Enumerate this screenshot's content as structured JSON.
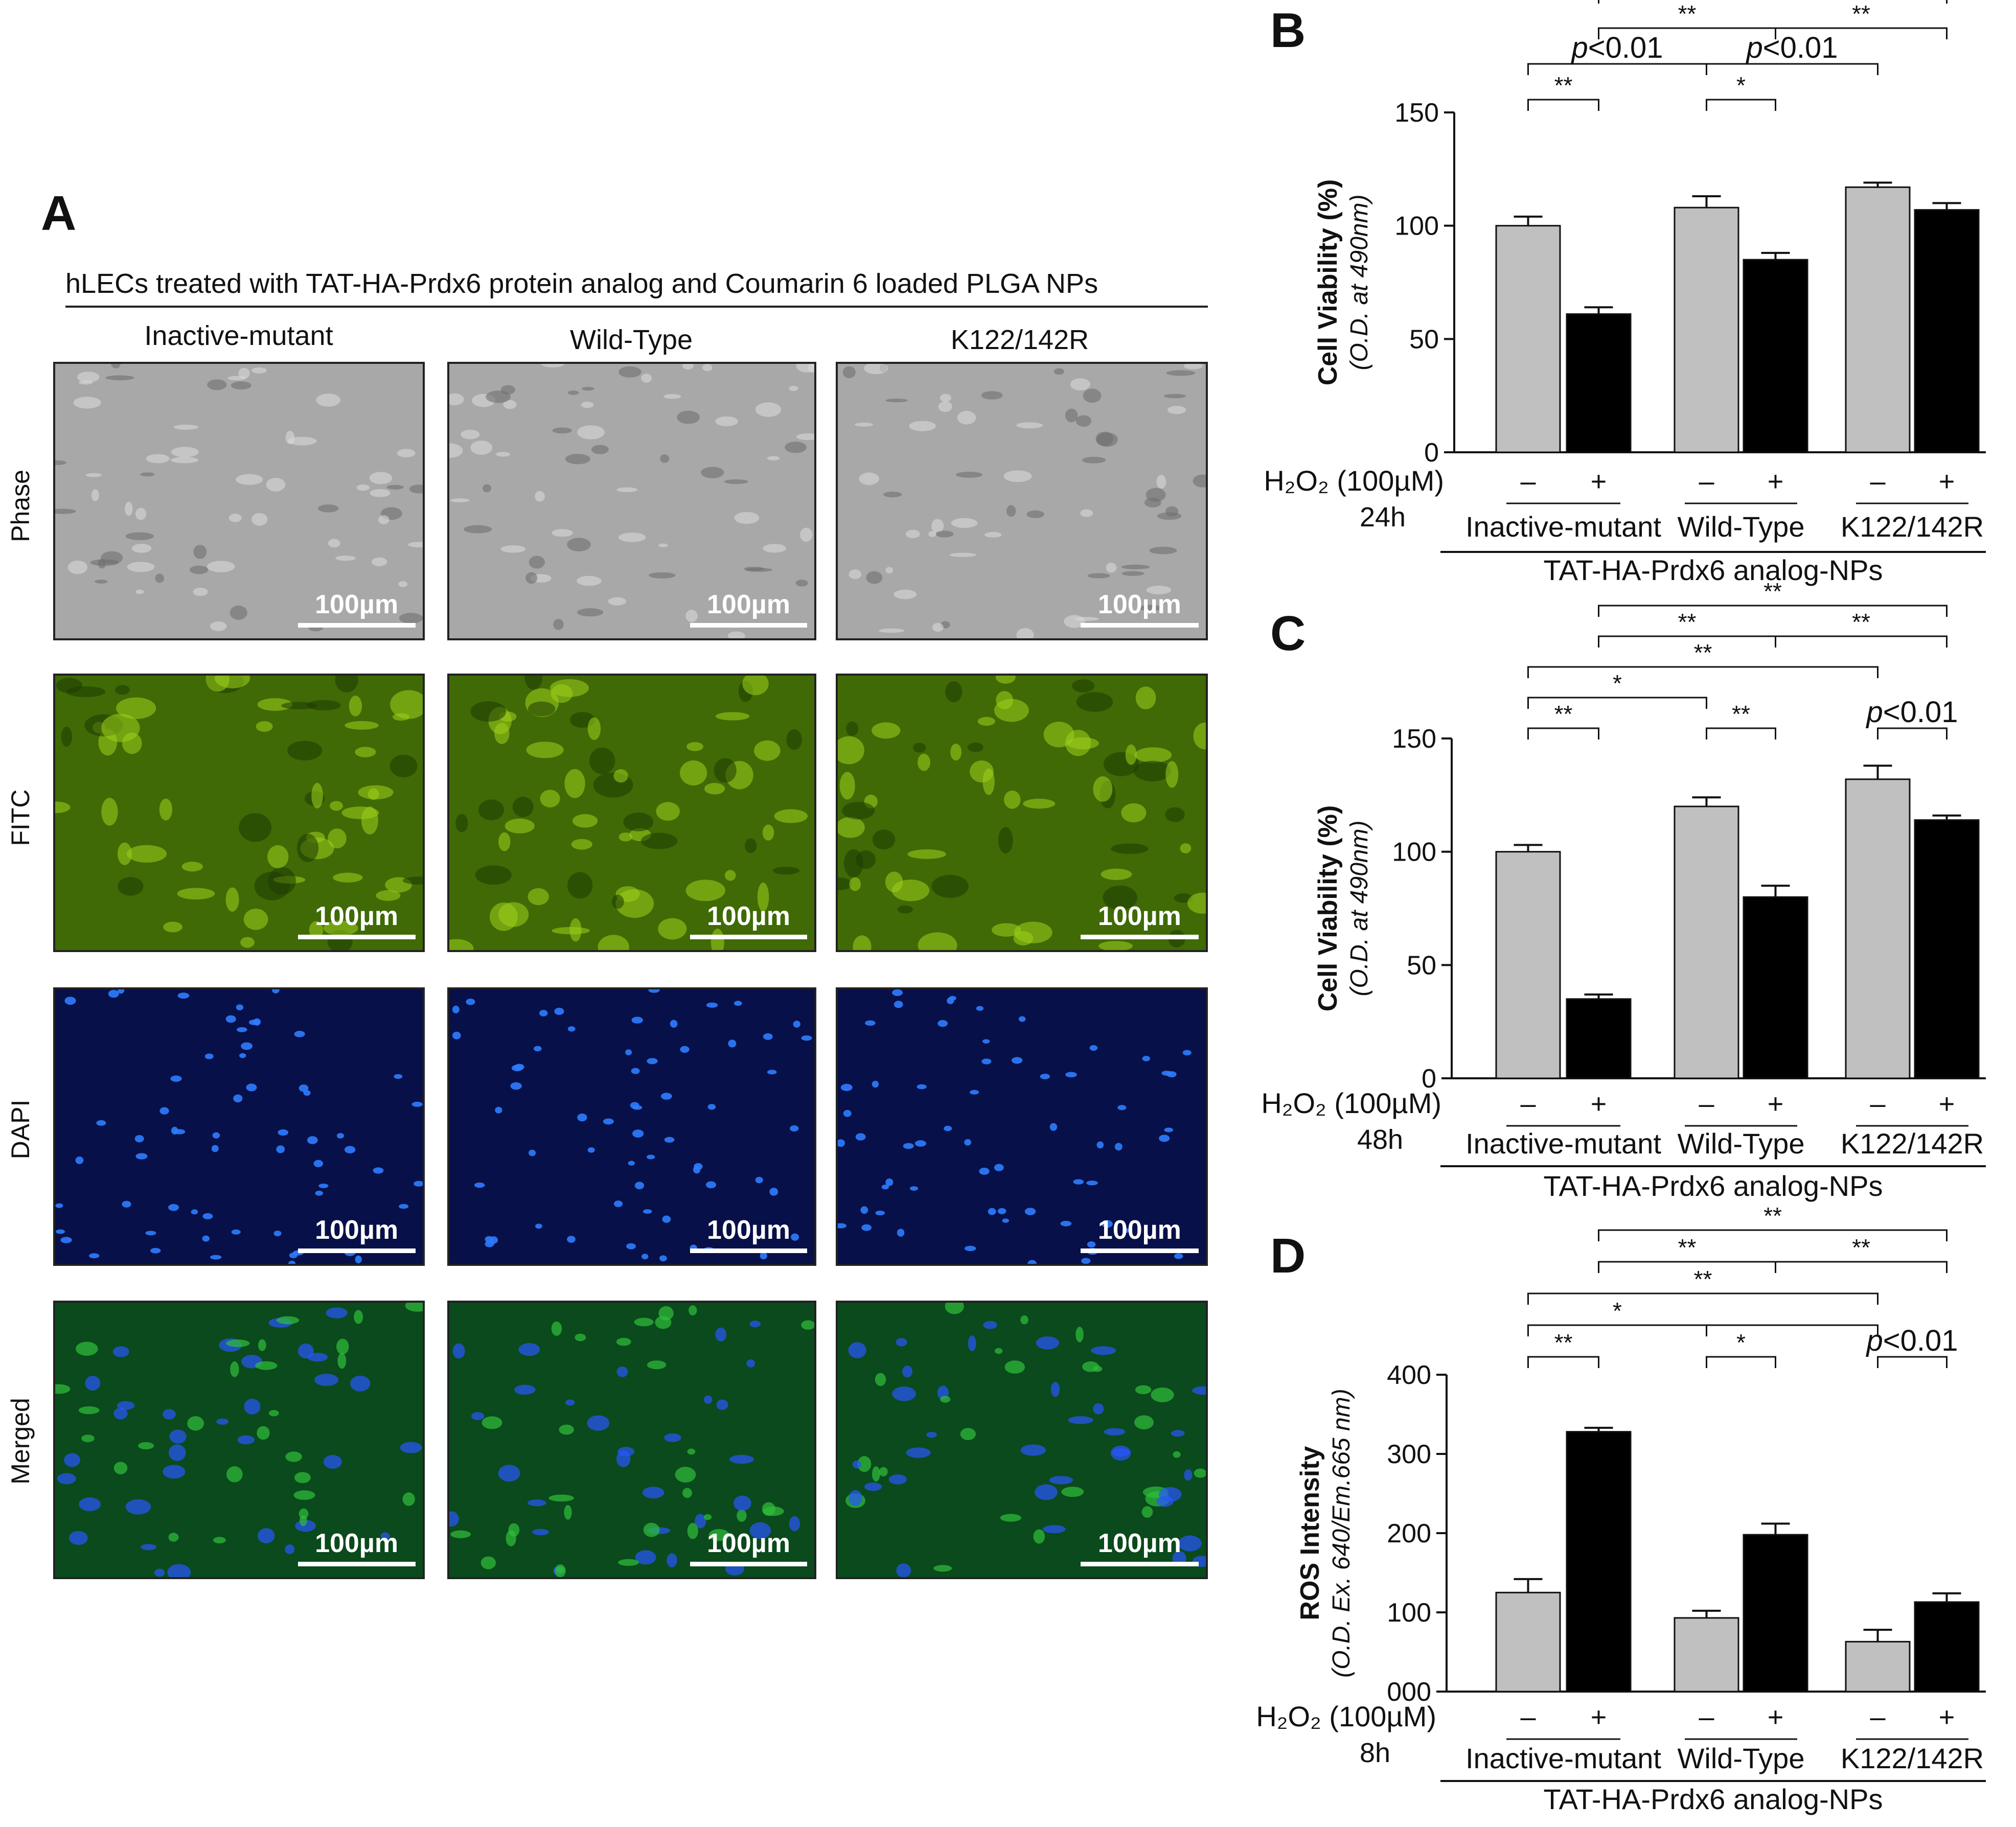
{
  "panel_labels": {
    "a": "A",
    "b": "B",
    "c": "C",
    "d": "D"
  },
  "panel_a": {
    "header": "hLECs treated with TAT-HA-Prdx6 protein analog and Coumarin 6 loaded PLGA NPs",
    "columns": [
      "Inactive-mutant",
      "Wild-Type",
      "K122/142R"
    ],
    "rows": [
      "Phase",
      "FITC",
      "DAPI",
      "Merged"
    ],
    "scale_bar": "100µm",
    "row_colors": {
      "Phase": "#a8a8a8",
      "FITC": "#3f6a05",
      "DAPI": "#071048",
      "Merged": "#0a4a1c"
    }
  },
  "colors": {
    "untreated": "#c0c0c0",
    "treated": "#000000"
  },
  "chart_data": [
    {
      "panel": "B",
      "type": "bar",
      "ylabel": "Cell Viability (%)",
      "ylabel_sub": "(O.D. at 490nm)",
      "ylim": [
        0,
        150
      ],
      "yticks": [
        "0",
        "50",
        "100",
        "150"
      ],
      "treatment_label": "H₂O₂ (100µM)",
      "time_label": "24h",
      "dose_signs": [
        "–",
        "+"
      ],
      "groups": [
        "Inactive-mutant",
        "Wild-Type",
        "K122/142R"
      ],
      "group_title": "TAT-HA-Prdx6 analog-NPs",
      "values": [
        100,
        61,
        108,
        85,
        117,
        107
      ],
      "errors": [
        4,
        3,
        5,
        3,
        2,
        3
      ],
      "brackets": [
        {
          "from": 1,
          "to": 5,
          "level": 4,
          "label": "**"
        },
        {
          "from": 1,
          "to": 3,
          "level": 3,
          "label": "**"
        },
        {
          "from": 3,
          "to": 5,
          "level": 3,
          "label": "**"
        },
        {
          "from": 0,
          "to": 2,
          "level": 2,
          "label": "p<0.01"
        },
        {
          "from": 2,
          "to": 4,
          "level": 2,
          "label": "p<0.01"
        },
        {
          "from": 0,
          "to": 1,
          "level": 1,
          "label": "**"
        },
        {
          "from": 2,
          "to": 3,
          "level": 1,
          "label": "*"
        }
      ]
    },
    {
      "panel": "C",
      "type": "bar",
      "ylabel": "Cell Viability (%)",
      "ylabel_sub": "(O.D. at 490nm)",
      "ylim": [
        0,
        150
      ],
      "yticks": [
        "0",
        "50",
        "100",
        "150"
      ],
      "treatment_label": "H₂O₂ (100µM)",
      "time_label": "48h",
      "dose_signs": [
        "–",
        "+"
      ],
      "groups": [
        "Inactive-mutant",
        "Wild-Type",
        "K122/142R"
      ],
      "group_title": "TAT-HA-Prdx6 analog-NPs",
      "values": [
        100,
        35,
        120,
        80,
        132,
        114
      ],
      "errors": [
        3,
        2,
        4,
        5,
        6,
        2
      ],
      "brackets": [
        {
          "from": 1,
          "to": 5,
          "level": 5,
          "label": "**"
        },
        {
          "from": 1,
          "to": 3,
          "level": 4,
          "label": "**"
        },
        {
          "from": 3,
          "to": 5,
          "level": 4,
          "label": "**"
        },
        {
          "from": 0,
          "to": 4,
          "level": 3,
          "label": "**"
        },
        {
          "from": 0,
          "to": 2,
          "level": 2,
          "label": "*"
        },
        {
          "from": 0,
          "to": 1,
          "level": 1,
          "label": "**"
        },
        {
          "from": 2,
          "to": 3,
          "level": 1,
          "label": "**"
        },
        {
          "from": 4,
          "to": 5,
          "level": 1,
          "label": "p<0.01"
        }
      ]
    },
    {
      "panel": "D",
      "type": "bar",
      "ylabel": "ROS Intensity",
      "ylabel_sub": "(O.D. Ex. 640/Em.665 nm)",
      "ylim": [
        0,
        400
      ],
      "yticks": [
        "000",
        "100",
        "200",
        "300",
        "400"
      ],
      "treatment_label": "H₂O₂ (100µM)",
      "time_label": "8h",
      "dose_signs": [
        "–",
        "+"
      ],
      "groups": [
        "Inactive-mutant",
        "Wild-Type",
        "K122/142R"
      ],
      "group_title": "TAT-HA-Prdx6 analog-NPs",
      "values": [
        125,
        328,
        93,
        198,
        63,
        113
      ],
      "errors": [
        17,
        5,
        9,
        14,
        15,
        11
      ],
      "brackets": [
        {
          "from": 1,
          "to": 5,
          "level": 5,
          "label": "**"
        },
        {
          "from": 1,
          "to": 3,
          "level": 4,
          "label": "**"
        },
        {
          "from": 3,
          "to": 5,
          "level": 4,
          "label": "**"
        },
        {
          "from": 0,
          "to": 4,
          "level": 3,
          "label": "**"
        },
        {
          "from": 0,
          "to": 2,
          "level": 2,
          "label": "*"
        },
        {
          "from": 2,
          "to": 4,
          "level": 2,
          "label": ""
        },
        {
          "from": 0,
          "to": 1,
          "level": 1,
          "label": "**"
        },
        {
          "from": 2,
          "to": 3,
          "level": 1,
          "label": "*"
        },
        {
          "from": 4,
          "to": 5,
          "level": 1,
          "label": "p<0.01"
        }
      ]
    }
  ]
}
